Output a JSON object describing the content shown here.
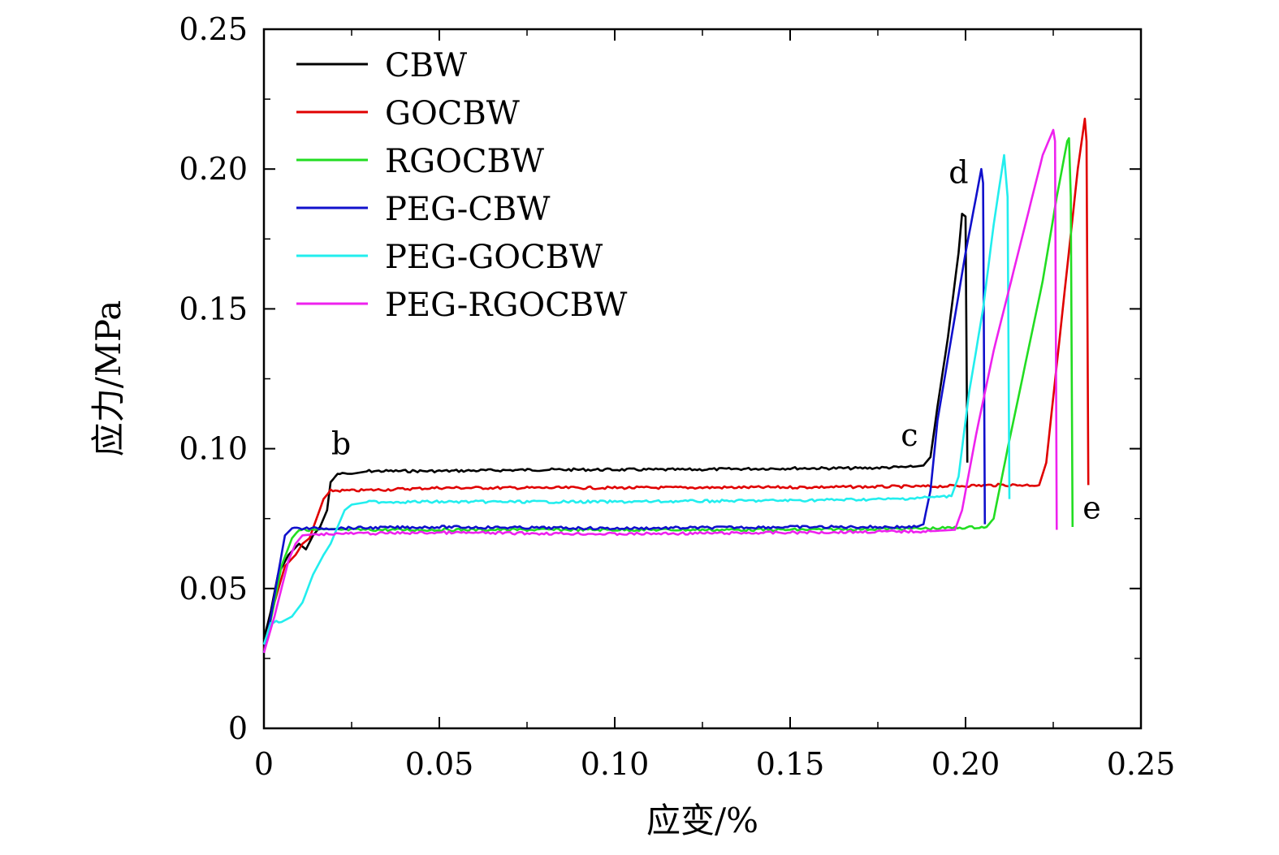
{
  "chart_data": {
    "type": "line",
    "title": "",
    "xlabel": "应变/%",
    "ylabel": "应力/MPa",
    "xlim": [
      0,
      0.25
    ],
    "ylim": [
      0,
      0.25
    ],
    "x_ticks": [
      0,
      0.05,
      0.1,
      0.15,
      0.2,
      0.25
    ],
    "x_tick_labels": [
      "0",
      "0.05",
      "0.10",
      "0.15",
      "0.20",
      "0.25"
    ],
    "y_ticks": [
      0,
      0.05,
      0.1,
      0.15,
      0.2,
      0.25
    ],
    "y_tick_labels": [
      "0",
      "0.05",
      "0.10",
      "0.15",
      "0.20",
      "0.25"
    ],
    "grid": false,
    "legend_position": "top-left",
    "annotations": [
      {
        "text": "b",
        "x": 0.022,
        "y": 0.098
      },
      {
        "text": "c",
        "x": 0.184,
        "y": 0.101
      },
      {
        "text": "d",
        "x": 0.198,
        "y": 0.195
      },
      {
        "text": "e",
        "x": 0.236,
        "y": 0.075
      }
    ],
    "series": [
      {
        "name": "CBW",
        "color": "#000000",
        "points": [
          [
            0,
            0.032
          ],
          [
            0.002,
            0.042
          ],
          [
            0.004,
            0.055
          ],
          [
            0.007,
            0.062
          ],
          [
            0.01,
            0.066
          ],
          [
            0.012,
            0.064
          ],
          [
            0.014,
            0.069
          ],
          [
            0.016,
            0.072
          ],
          [
            0.018,
            0.078
          ],
          [
            0.019,
            0.088
          ],
          [
            0.021,
            0.091
          ],
          [
            0.025,
            0.091
          ],
          [
            0.03,
            0.092
          ],
          [
            0.05,
            0.092
          ],
          [
            0.08,
            0.0925
          ],
          [
            0.12,
            0.0925
          ],
          [
            0.15,
            0.093
          ],
          [
            0.17,
            0.093
          ],
          [
            0.185,
            0.0935
          ],
          [
            0.188,
            0.094
          ],
          [
            0.19,
            0.097
          ],
          [
            0.192,
            0.115
          ],
          [
            0.195,
            0.14
          ],
          [
            0.198,
            0.17
          ],
          [
            0.199,
            0.184
          ],
          [
            0.2,
            0.183
          ],
          [
            0.2005,
            0.095
          ]
        ]
      },
      {
        "name": "GOCBW",
        "color": "#e00000",
        "points": [
          [
            0,
            0.028
          ],
          [
            0.003,
            0.045
          ],
          [
            0.006,
            0.058
          ],
          [
            0.009,
            0.062
          ],
          [
            0.011,
            0.066
          ],
          [
            0.013,
            0.068
          ],
          [
            0.015,
            0.075
          ],
          [
            0.017,
            0.082
          ],
          [
            0.019,
            0.085
          ],
          [
            0.025,
            0.085
          ],
          [
            0.05,
            0.086
          ],
          [
            0.1,
            0.086
          ],
          [
            0.15,
            0.0862
          ],
          [
            0.19,
            0.0865
          ],
          [
            0.21,
            0.087
          ],
          [
            0.221,
            0.087
          ],
          [
            0.223,
            0.095
          ],
          [
            0.226,
            0.13
          ],
          [
            0.229,
            0.165
          ],
          [
            0.232,
            0.2
          ],
          [
            0.234,
            0.218
          ],
          [
            0.2345,
            0.21
          ],
          [
            0.235,
            0.087
          ]
        ]
      },
      {
        "name": "RGOCBW",
        "color": "#22dd22",
        "points": [
          [
            0,
            0.027
          ],
          [
            0.003,
            0.045
          ],
          [
            0.005,
            0.058
          ],
          [
            0.008,
            0.068
          ],
          [
            0.01,
            0.071
          ],
          [
            0.015,
            0.071
          ],
          [
            0.05,
            0.071
          ],
          [
            0.1,
            0.071
          ],
          [
            0.15,
            0.071
          ],
          [
            0.19,
            0.0715
          ],
          [
            0.206,
            0.072
          ],
          [
            0.208,
            0.075
          ],
          [
            0.212,
            0.1
          ],
          [
            0.217,
            0.13
          ],
          [
            0.222,
            0.16
          ],
          [
            0.226,
            0.19
          ],
          [
            0.229,
            0.21
          ],
          [
            0.2295,
            0.211
          ],
          [
            0.23,
            0.19
          ],
          [
            0.2305,
            0.072
          ]
        ]
      },
      {
        "name": "PEG-CBW",
        "color": "#1010cc",
        "points": [
          [
            0,
            0.027
          ],
          [
            0.002,
            0.04
          ],
          [
            0.004,
            0.055
          ],
          [
            0.006,
            0.069
          ],
          [
            0.008,
            0.0715
          ],
          [
            0.015,
            0.0715
          ],
          [
            0.05,
            0.072
          ],
          [
            0.1,
            0.0715
          ],
          [
            0.15,
            0.072
          ],
          [
            0.186,
            0.072
          ],
          [
            0.188,
            0.073
          ],
          [
            0.19,
            0.085
          ],
          [
            0.192,
            0.11
          ],
          [
            0.196,
            0.14
          ],
          [
            0.2,
            0.17
          ],
          [
            0.203,
            0.19
          ],
          [
            0.2045,
            0.2
          ],
          [
            0.205,
            0.195
          ],
          [
            0.2055,
            0.073
          ]
        ]
      },
      {
        "name": "PEG-GOCBW",
        "color": "#22eeee",
        "points": [
          [
            0,
            0.03
          ],
          [
            0.002,
            0.038
          ],
          [
            0.005,
            0.038
          ],
          [
            0.008,
            0.04
          ],
          [
            0.011,
            0.045
          ],
          [
            0.014,
            0.055
          ],
          [
            0.017,
            0.062
          ],
          [
            0.019,
            0.066
          ],
          [
            0.021,
            0.072
          ],
          [
            0.023,
            0.078
          ],
          [
            0.025,
            0.08
          ],
          [
            0.03,
            0.081
          ],
          [
            0.05,
            0.081
          ],
          [
            0.1,
            0.081
          ],
          [
            0.15,
            0.0815
          ],
          [
            0.18,
            0.082
          ],
          [
            0.196,
            0.083
          ],
          [
            0.198,
            0.09
          ],
          [
            0.201,
            0.12
          ],
          [
            0.205,
            0.15
          ],
          [
            0.208,
            0.18
          ],
          [
            0.211,
            0.205
          ],
          [
            0.212,
            0.19
          ],
          [
            0.2125,
            0.082
          ]
        ]
      },
      {
        "name": "PEG-RGOCBW",
        "color": "#ee22ee",
        "points": [
          [
            0,
            0.027
          ],
          [
            0.003,
            0.04
          ],
          [
            0.005,
            0.05
          ],
          [
            0.007,
            0.06
          ],
          [
            0.009,
            0.066
          ],
          [
            0.011,
            0.069
          ],
          [
            0.015,
            0.0695
          ],
          [
            0.05,
            0.07
          ],
          [
            0.1,
            0.0695
          ],
          [
            0.15,
            0.07
          ],
          [
            0.19,
            0.0705
          ],
          [
            0.197,
            0.071
          ],
          [
            0.199,
            0.078
          ],
          [
            0.203,
            0.105
          ],
          [
            0.208,
            0.135
          ],
          [
            0.213,
            0.16
          ],
          [
            0.218,
            0.185
          ],
          [
            0.222,
            0.205
          ],
          [
            0.225,
            0.214
          ],
          [
            0.2255,
            0.21
          ],
          [
            0.226,
            0.071
          ]
        ]
      }
    ]
  }
}
